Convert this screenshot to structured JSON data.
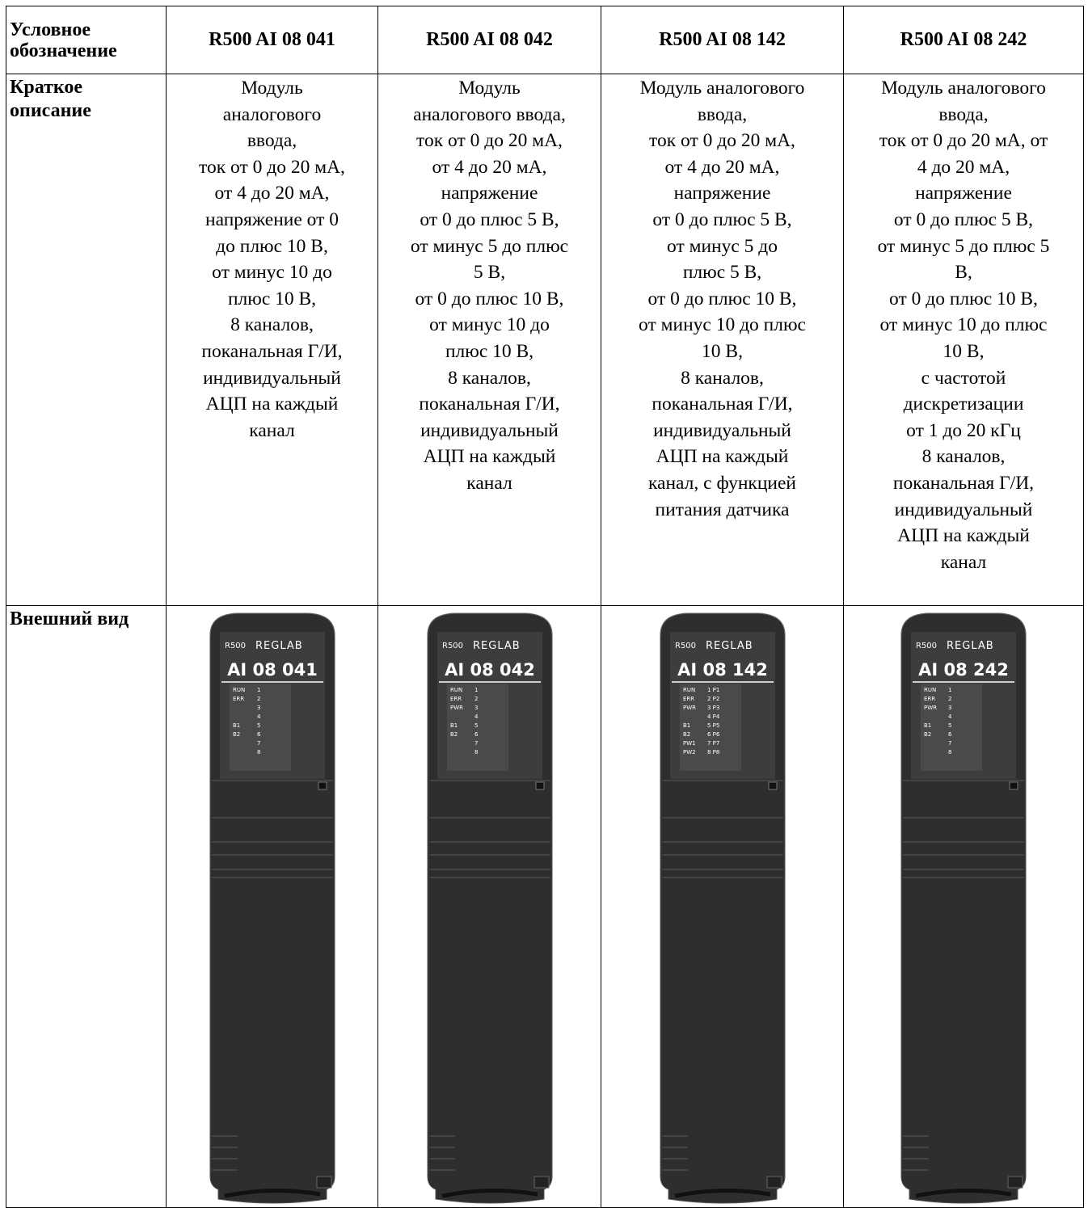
{
  "table": {
    "header": [
      "Условное обозначение",
      "R500 AI 08 041",
      "R500 AI 08 042",
      "R500 AI 08 142",
      "R500 AI 08 242"
    ],
    "description": {
      "label": "Краткое описание",
      "cells": [
        [
          "Модуль",
          "аналогового",
          "ввода,",
          "ток от 0 до 20 мА,",
          "от 4 до 20 мА,",
          "напряжение от 0",
          "до плюс 10 В,",
          "от минус 10 до",
          "плюс 10 В,",
          "8 каналов,",
          "поканальная Г/И,",
          "индивидуальный",
          "АЦП на каждый",
          "канал"
        ],
        [
          "Модуль",
          "аналогового ввода,",
          "ток от 0 до 20 мА,",
          "от 4 до 20 мА,",
          "напряжение",
          "от 0 до плюс 5 В,",
          "от минус 5 до плюс",
          "5 В,",
          "от 0 до плюс 10 В,",
          "от минус 10 до",
          "плюс 10 В,",
          "8 каналов,",
          "поканальная Г/И,",
          "индивидуальный",
          "АЦП на каждый",
          "канал"
        ],
        [
          "Модуль аналогового",
          "ввода,",
          "ток от 0 до 20 мА,",
          "от 4 до 20 мА,",
          "напряжение",
          "от 0 до плюс 5 В,",
          "от минус 5 до",
          "плюс 5 В,",
          "от 0 до плюс 10 В,",
          "от минус 10 до плюс",
          "10 В,",
          "8 каналов,",
          "поканальная Г/И,",
          "индивидуальный",
          "АЦП на каждый",
          "канал, с функцией",
          "питания датчика"
        ],
        [
          "Модуль аналогового",
          "ввода,",
          "ток от 0 до 20 мА, от",
          "4 до 20 мА,",
          "напряжение",
          "от 0 до плюс 5 В,",
          "от минус 5 до плюс 5",
          "В,",
          "от 0 до плюс 10 В,",
          "от минус 10 до плюс",
          "10 В,",
          "с частотой",
          "дискретизации",
          "от 1 до 20 кГц",
          "8 каналов,",
          "поканальная Г/И,",
          "индивидуальный",
          "АЦП на каждый",
          "канал"
        ]
      ]
    },
    "appearance": {
      "label": "Внешний вид",
      "devices": [
        {
          "brand": "R500",
          "logo": "REGLAB",
          "model": "AI 08 041",
          "leds_left": [
            "RUN",
            "ERR",
            null,
            null,
            "B1",
            "B2",
            null,
            null
          ],
          "leds_right": [
            "1",
            "2",
            "3",
            "4",
            "5",
            "6",
            "7",
            "8"
          ]
        },
        {
          "brand": "R500",
          "logo": "REGLAB",
          "model": "AI 08 042",
          "leds_left": [
            "RUN",
            "ERR",
            "PWR",
            null,
            "B1",
            "B2",
            null,
            null
          ],
          "leds_right": [
            "1",
            "2",
            "3",
            "4",
            "5",
            "6",
            "7",
            "8"
          ]
        },
        {
          "brand": "R500",
          "logo": "REGLAB",
          "model": "AI 08 142",
          "leds_left": [
            "RUN",
            "ERR",
            "PWR",
            null,
            "B1",
            "B2",
            "PW1",
            "PW2"
          ],
          "leds_right": [
            "1 P1",
            "2 P2",
            "3 P3",
            "4 P4",
            "5 P5",
            "6 P6",
            "7 P7",
            "8 P8"
          ]
        },
        {
          "brand": "R500",
          "logo": "REGLAB",
          "model": "AI 08 242",
          "leds_left": [
            "RUN",
            "ERR",
            "PWR",
            null,
            "B1",
            "B2",
            null,
            null
          ],
          "leds_right": [
            "1",
            "2",
            "3",
            "4",
            "5",
            "6",
            "7",
            "8"
          ]
        }
      ]
    }
  }
}
